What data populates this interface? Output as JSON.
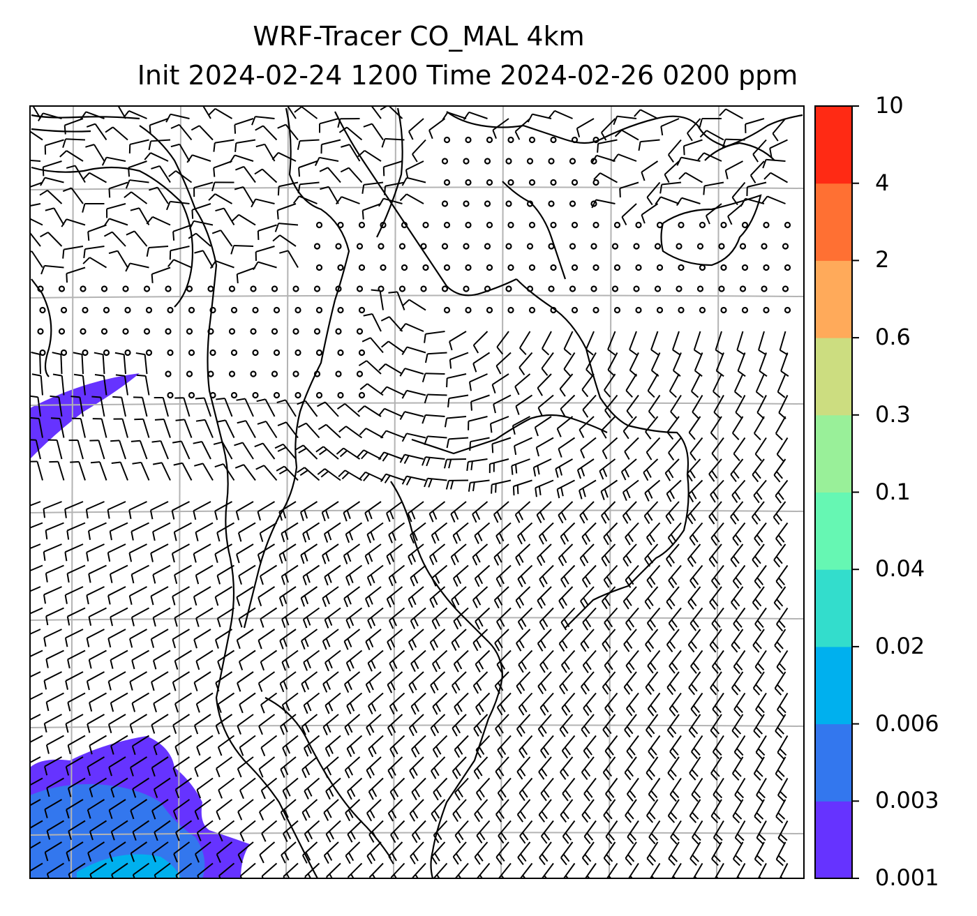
{
  "title": {
    "line1": "WRF-Tracer CO_MAL 4km",
    "line2": "Init 2024-02-24 1200 Time 2024-02-26 0200 ppm"
  },
  "colorbar": {
    "levels": [
      "0.001",
      "0.003",
      "0.006",
      "0.02",
      "0.04",
      "0.1",
      "0.3",
      "0.6",
      "2",
      "4",
      "10"
    ],
    "colors": [
      "#6633ff",
      "#3377ee",
      "#00b0ee",
      "#33ddcc",
      "#66f7b3",
      "#99f099",
      "#ccdd80",
      "#ffaa5a",
      "#ff7033",
      "#ff2a14"
    ]
  },
  "map": {
    "grid_color": "#b3b3b3",
    "plume_colors": {
      "low": "#6633ff",
      "mid": "#3377ee",
      "high": "#00b0ee"
    }
  }
}
